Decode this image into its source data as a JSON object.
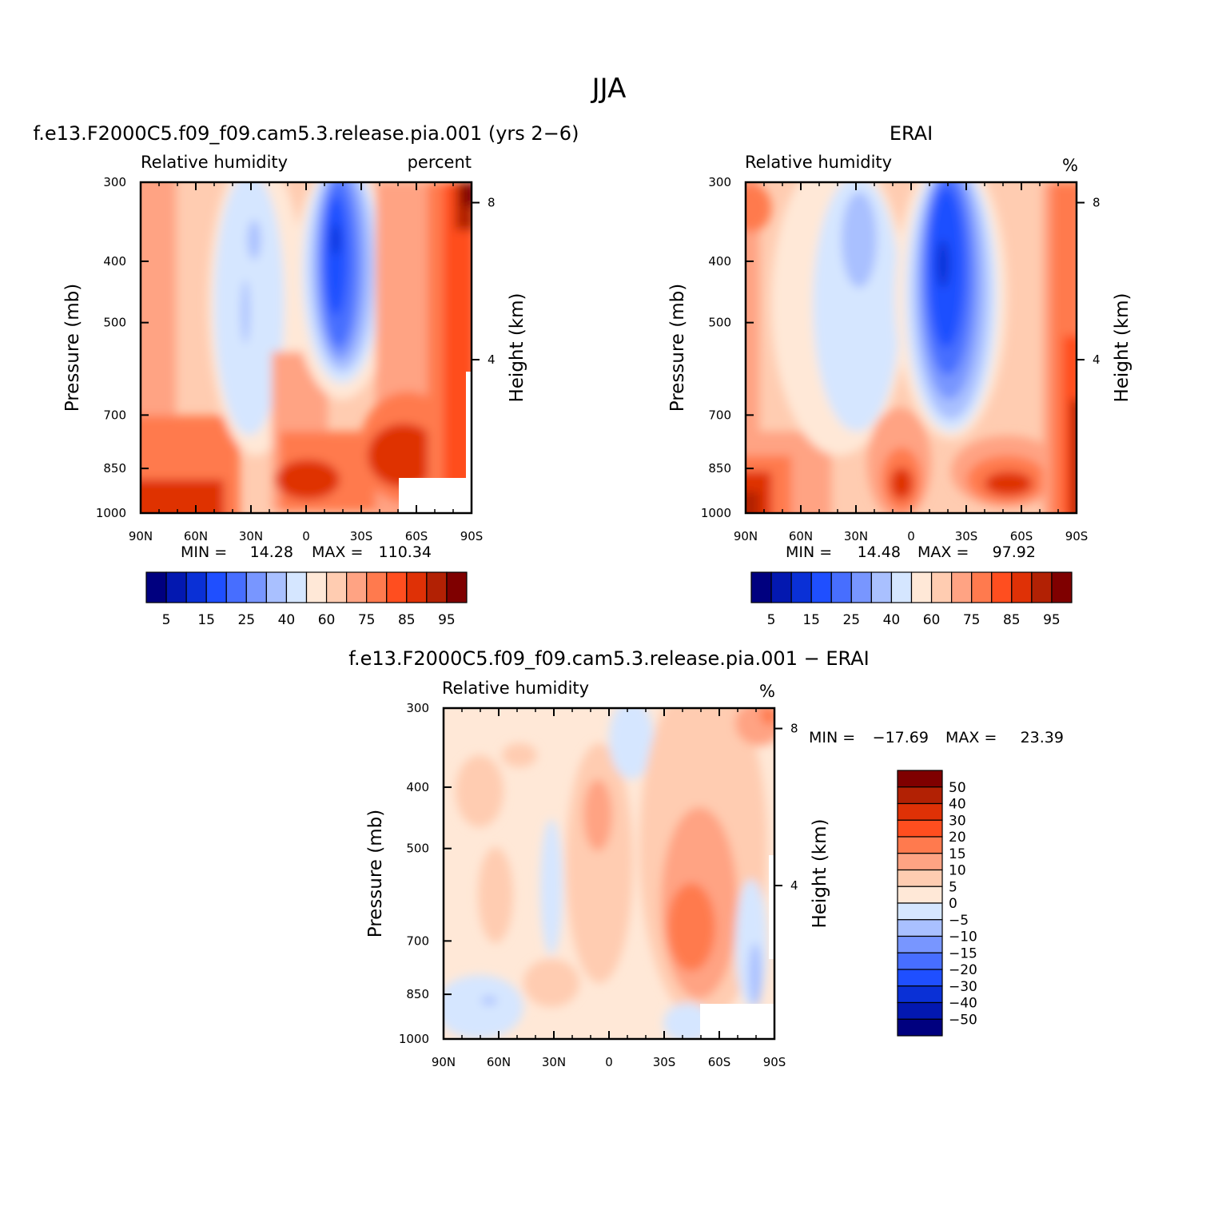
{
  "figure": {
    "title": "JJA"
  },
  "chart_data": [
    {
      "type": "heatmap",
      "panel": "model",
      "title": "f.e13.F2000C5.f09_f09.cam5.3.release.pia.001 (yrs 2−6)",
      "left_label": "Relative humidity",
      "right_label": "percent",
      "ylabel": "Pressure (mb)",
      "y2label": "Height (km)",
      "xticks": [
        "90N",
        "60N",
        "30N",
        "0",
        "30S",
        "60S",
        "90S"
      ],
      "yticks": [
        "300",
        "400",
        "500",
        "700",
        "850",
        "1000"
      ],
      "y2ticks": [
        "8",
        "4"
      ],
      "ylim": [
        1000,
        300
      ],
      "xlim": [
        90,
        -90
      ],
      "min_label": "MIN =",
      "min_value": "14.28",
      "max_label": "MAX =",
      "max_value": "110.34",
      "colorbar_labels": [
        "5",
        "15",
        "25",
        "40",
        "60",
        "75",
        "85",
        "95"
      ]
    },
    {
      "type": "heatmap",
      "panel": "obs",
      "title": "ERAI",
      "left_label": "Relative humidity",
      "right_label": "%",
      "ylabel": "Pressure (mb)",
      "y2label": "Height (km)",
      "xticks": [
        "90N",
        "60N",
        "30N",
        "0",
        "30S",
        "60S",
        "90S"
      ],
      "yticks": [
        "300",
        "400",
        "500",
        "700",
        "850",
        "1000"
      ],
      "y2ticks": [
        "8",
        "4"
      ],
      "ylim": [
        1000,
        300
      ],
      "xlim": [
        90,
        -90
      ],
      "min_label": "MIN =",
      "min_value": "14.48",
      "max_label": "MAX =",
      "max_value": "97.92",
      "colorbar_labels": [
        "5",
        "15",
        "25",
        "40",
        "60",
        "75",
        "85",
        "95"
      ]
    },
    {
      "type": "heatmap",
      "panel": "diff",
      "title": "f.e13.F2000C5.f09_f09.cam5.3.release.pia.001 − ERAI",
      "left_label": "Relative humidity",
      "right_label": "%",
      "ylabel": "Pressure (mb)",
      "y2label": "Height (km)",
      "xticks": [
        "90N",
        "60N",
        "30N",
        "0",
        "30S",
        "60S",
        "90S"
      ],
      "yticks": [
        "300",
        "400",
        "500",
        "700",
        "850",
        "1000"
      ],
      "y2ticks": [
        "8",
        "4"
      ],
      "ylim": [
        1000,
        300
      ],
      "xlim": [
        90,
        -90
      ],
      "min_label": "MIN =",
      "min_value": "−17.69",
      "max_label": "MAX =",
      "max_value": "23.39",
      "colorbar_labels": [
        "50",
        "40",
        "30",
        "20",
        "15",
        "10",
        "5",
        "0",
        "−5",
        "−10",
        "−15",
        "−20",
        "−30",
        "−40",
        "−50"
      ]
    }
  ],
  "colors": {
    "scale": [
      "#00007f",
      "#0318b0",
      "#0a30d6",
      "#1f4fff",
      "#476eff",
      "#7896ff",
      "#a9c0ff",
      "#d5e6ff",
      "#ffe8d7",
      "#ffccb1",
      "#ffa383",
      "#ff7a4e",
      "#ff4e1f",
      "#df3106",
      "#b22104",
      "#7f0000"
    ]
  }
}
